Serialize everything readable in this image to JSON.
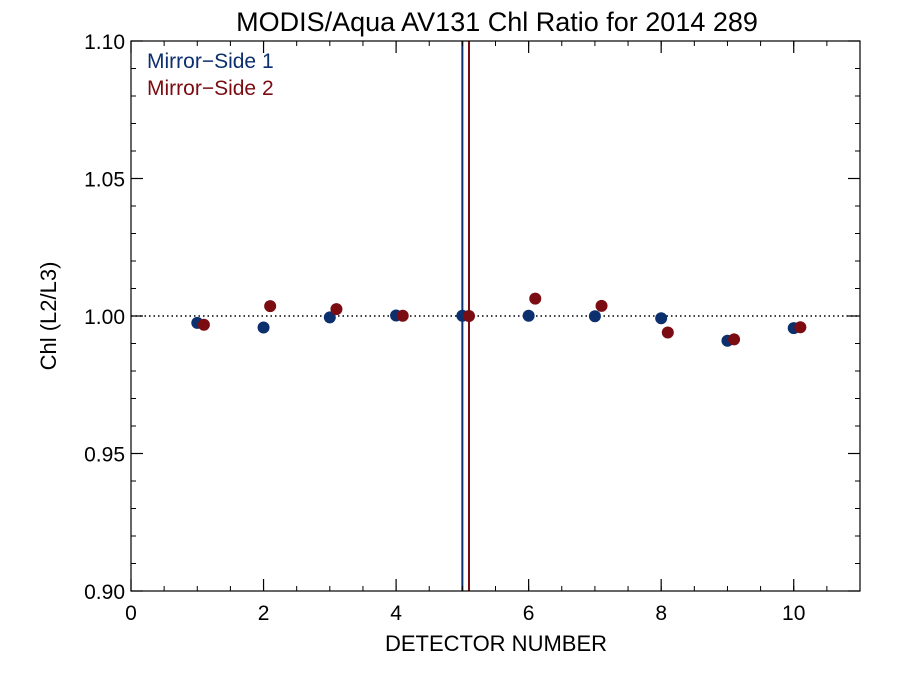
{
  "chart_data": {
    "type": "scatter",
    "title": "MODIS/Aqua AV131 Chl Ratio for 2014 289",
    "xlabel": "DETECTOR NUMBER",
    "ylabel": "Chl (L2/L3)",
    "xlim": [
      0,
      11
    ],
    "ylim": [
      0.9,
      1.1
    ],
    "x_ticks": [
      0,
      2,
      4,
      6,
      8,
      10
    ],
    "x_tick_labels": [
      "0",
      "2",
      "4",
      "6",
      "8",
      "10"
    ],
    "y_ticks": [
      0.9,
      0.95,
      1.0,
      1.05,
      1.1
    ],
    "y_tick_labels": [
      "0.90",
      "0.95",
      "1.00",
      "1.05",
      "1.10"
    ],
    "reference_line_y": 1.0,
    "legend_position": "top-left",
    "series": [
      {
        "name": "Mirror−Side 1",
        "color": "#0c2f6e",
        "x": [
          1,
          2,
          3,
          4,
          5,
          6,
          7,
          8,
          9,
          10
        ],
        "y": [
          0.9975,
          0.9958,
          0.9995,
          1.0002,
          1.0001,
          1.0001,
          0.9999,
          0.9992,
          0.991,
          0.9956
        ],
        "vertical_line_x": 5.0
      },
      {
        "name": "Mirror−Side 2",
        "color": "#7a0c12",
        "x": [
          1.1,
          2.1,
          3.1,
          4.1,
          5.1,
          6.1,
          7.1,
          8.1,
          9.1,
          10.1
        ],
        "y": [
          0.9968,
          1.0036,
          1.0025,
          1.0001,
          1.0,
          1.0063,
          1.0037,
          0.994,
          0.9915,
          0.9959
        ],
        "vertical_line_x": 5.1
      }
    ]
  }
}
